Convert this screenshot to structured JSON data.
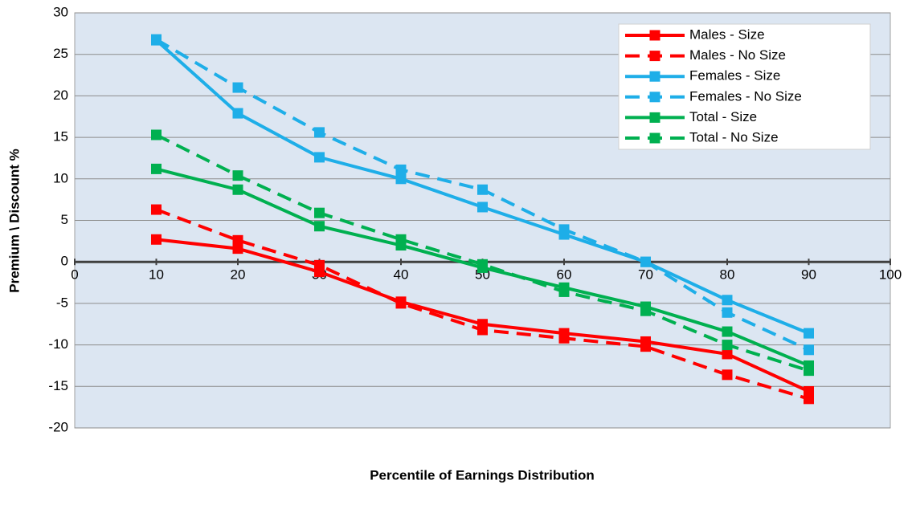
{
  "chart_data": {
    "type": "line",
    "x_label": "Percentile of Earnings Distribution",
    "y_label": "Premium \\ Discount %",
    "x": [
      10,
      20,
      30,
      40,
      50,
      60,
      70,
      80,
      90
    ],
    "xlim": [
      0,
      100
    ],
    "xticks": [
      0,
      10,
      20,
      30,
      40,
      50,
      60,
      70,
      80,
      90,
      100
    ],
    "ylim": [
      -20,
      30
    ],
    "yticks": [
      -20,
      -15,
      -10,
      -5,
      0,
      5,
      10,
      15,
      20,
      25,
      30
    ],
    "grid": true,
    "legend": "top-right",
    "series": [
      {
        "name": "Males - Size",
        "color": "#ff0000",
        "dashed": false,
        "values": [
          2.7,
          1.6,
          -1.2,
          -4.8,
          -7.5,
          -8.6,
          -9.6,
          -11.1,
          -15.6
        ]
      },
      {
        "name": "Males - No Size",
        "color": "#ff0000",
        "dashed": true,
        "values": [
          6.3,
          2.6,
          -0.4,
          -5.0,
          -8.2,
          -9.2,
          -10.2,
          -13.6,
          -16.5
        ]
      },
      {
        "name": "Females - Size",
        "color": "#1eaee8",
        "dashed": false,
        "values": [
          26.7,
          17.9,
          12.6,
          10.0,
          6.6,
          3.3,
          0.0,
          -4.6,
          -8.6
        ]
      },
      {
        "name": "Females - No Size",
        "color": "#1eaee8",
        "dashed": true,
        "values": [
          26.8,
          21.0,
          15.6,
          11.1,
          8.7,
          3.9,
          0.0,
          -6.1,
          -10.6
        ]
      },
      {
        "name": "Total - Size",
        "color": "#00b050",
        "dashed": false,
        "values": [
          11.2,
          8.7,
          4.3,
          2.0,
          -0.7,
          -3.1,
          -5.4,
          -8.4,
          -12.5
        ]
      },
      {
        "name": "Total - No Size",
        "color": "#00b050",
        "dashed": true,
        "values": [
          15.3,
          10.4,
          5.9,
          2.7,
          -0.3,
          -3.6,
          -5.9,
          -10.0,
          -13.1
        ]
      }
    ]
  }
}
